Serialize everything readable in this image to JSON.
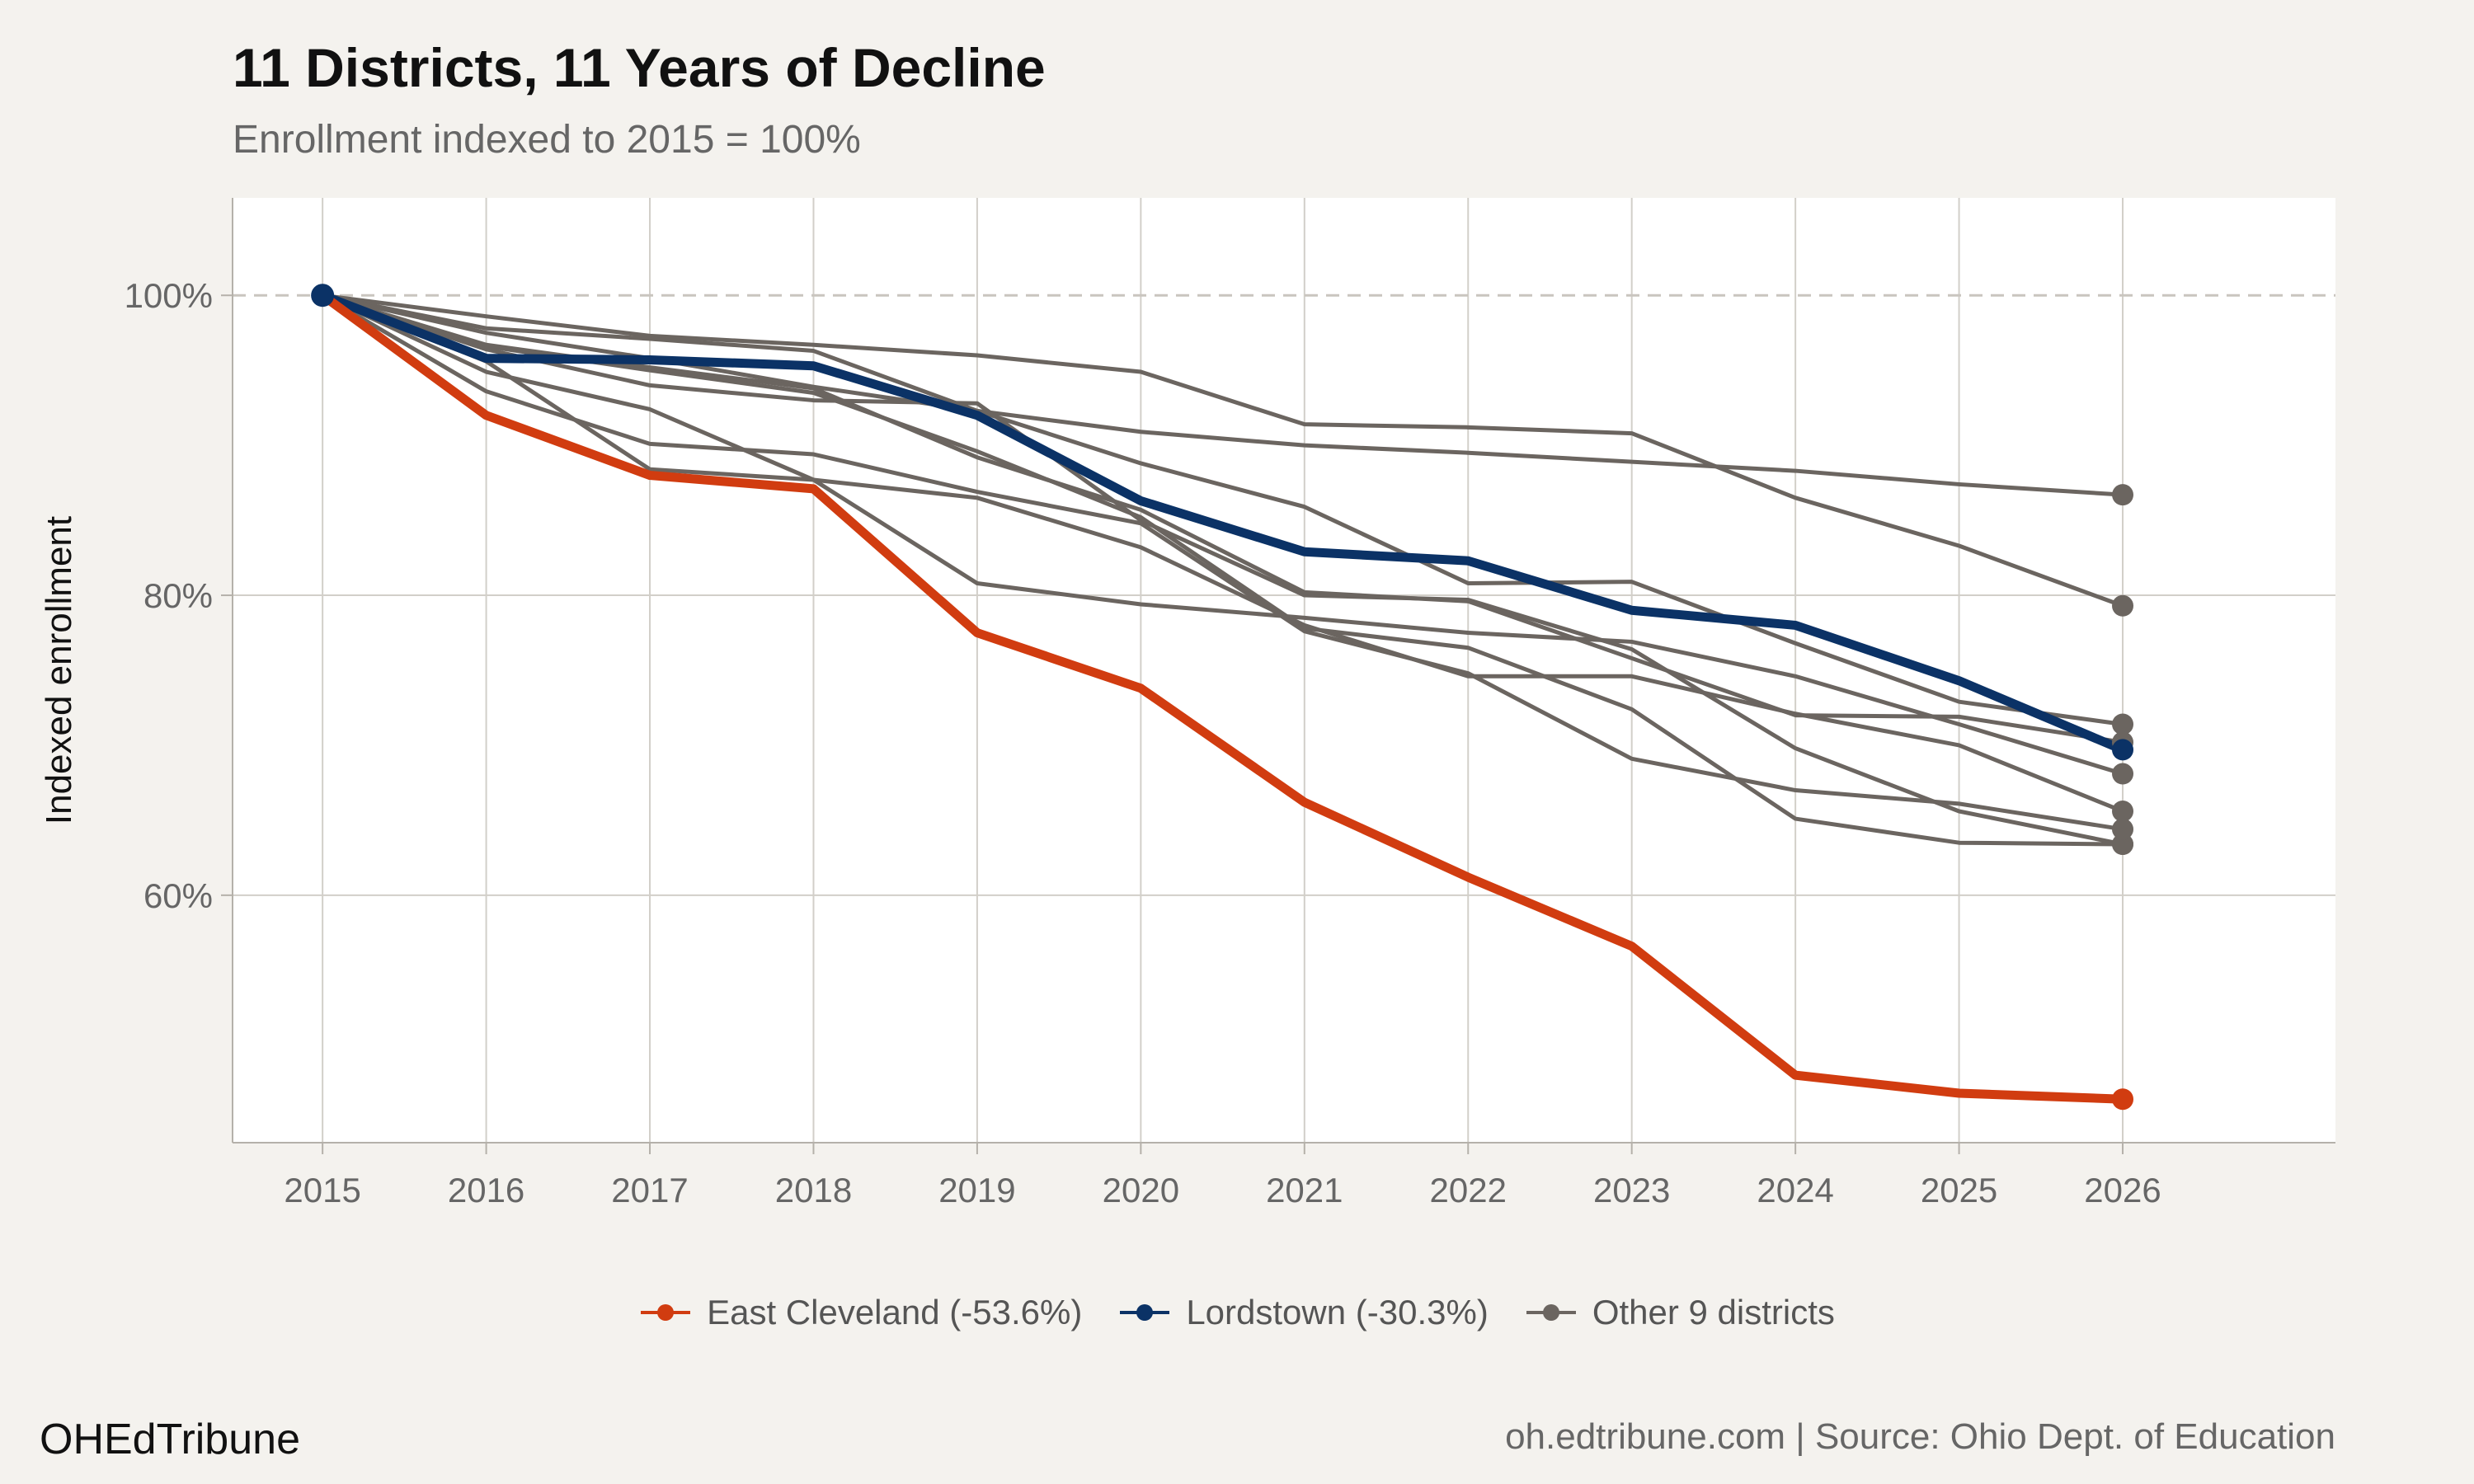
{
  "title": "11 Districts, 11 Years of Decline",
  "subtitle": "Enrollment indexed to 2015 = 100%",
  "brand": "OHEdTribune",
  "caption": "oh.edtribune.com | Source: Ohio Dept. of Education",
  "colors": {
    "background": "#f4f2ee",
    "panel": "#ffffff",
    "grid": "#d2cfc9",
    "east_cleveland": "#d13c10",
    "lordstown": "#0b3266",
    "other": "#6b6560"
  },
  "chart_data": {
    "type": "line",
    "title": "11 Districts, 11 Years of Decline",
    "subtitle": "Enrollment indexed to 2015 = 100%",
    "xlabel": "",
    "ylabel": "Indexed enrollment",
    "x": [
      2015,
      2016,
      2017,
      2018,
      2019,
      2020,
      2021,
      2022,
      2023,
      2024,
      2025,
      2026
    ],
    "ylim": [
      43.5,
      106.5
    ],
    "yticks": [
      60,
      80,
      100
    ],
    "ytick_labels": [
      "60%",
      "80%",
      "100%"
    ],
    "reference_line": 100,
    "grid": true,
    "legend_position": "bottom",
    "legend": [
      {
        "label": "East Cleveland (-53.6%)",
        "color": "#d13c10"
      },
      {
        "label": "Lordstown (-30.3%)",
        "color": "#0b3266"
      },
      {
        "label": "Other 9 districts",
        "color": "#6b6560"
      }
    ],
    "series": [
      {
        "group": "other",
        "values": [
          100,
          98.6,
          97.3,
          96.7,
          96.0,
          94.9,
          91.4,
          91.2,
          90.8,
          86.5,
          83.3,
          79.3
        ]
      },
      {
        "group": "other",
        "values": [
          100,
          97.8,
          97.1,
          96.3,
          92.3,
          90.9,
          90.0,
          89.5,
          88.9,
          88.3,
          87.4,
          86.7
        ]
      },
      {
        "group": "other",
        "values": [
          100,
          97.5,
          95.8,
          93.9,
          92.3,
          88.8,
          85.9,
          80.8,
          80.9,
          76.8,
          72.9,
          71.4
        ]
      },
      {
        "group": "other",
        "values": [
          100,
          96.4,
          94.0,
          93.0,
          92.8,
          85.0,
          80.0,
          79.7,
          76.4,
          69.8,
          65.6,
          63.4
        ]
      },
      {
        "group": "other",
        "values": [
          100,
          96.6,
          95.0,
          93.5,
          89.6,
          85.2,
          77.8,
          76.5,
          72.4,
          65.1,
          63.5,
          63.4
        ]
      },
      {
        "group": "other",
        "values": [
          100,
          95.6,
          88.4,
          87.7,
          86.5,
          83.2,
          78.0,
          74.6,
          74.6,
          72.1,
          70.0,
          65.6
        ]
      },
      {
        "group": "other",
        "values": [
          100,
          93.6,
          90.1,
          89.4,
          86.9,
          84.8,
          77.6,
          74.8,
          69.1,
          67.0,
          66.1,
          64.4
        ]
      },
      {
        "group": "other",
        "values": [
          100,
          94.9,
          92.4,
          87.7,
          80.8,
          79.4,
          78.5,
          77.5,
          76.9,
          74.6,
          71.4,
          68.1
        ]
      },
      {
        "group": "other",
        "values": [
          100,
          96.7,
          95.2,
          93.8,
          89.2,
          85.7,
          80.2,
          79.6,
          75.8,
          72.0,
          71.9,
          70.2
        ]
      },
      {
        "group": "lordstown",
        "name": "Lordstown (-30.3%)",
        "values": [
          100,
          95.8,
          95.7,
          95.3,
          92.0,
          86.3,
          82.9,
          82.3,
          79.0,
          78.0,
          74.3,
          69.7
        ]
      },
      {
        "group": "east_cleveland",
        "name": "East Cleveland (-53.6%)",
        "values": [
          100,
          92.0,
          88.0,
          87.1,
          77.5,
          73.8,
          66.2,
          61.2,
          56.6,
          48.0,
          46.8,
          46.4
        ]
      }
    ]
  }
}
